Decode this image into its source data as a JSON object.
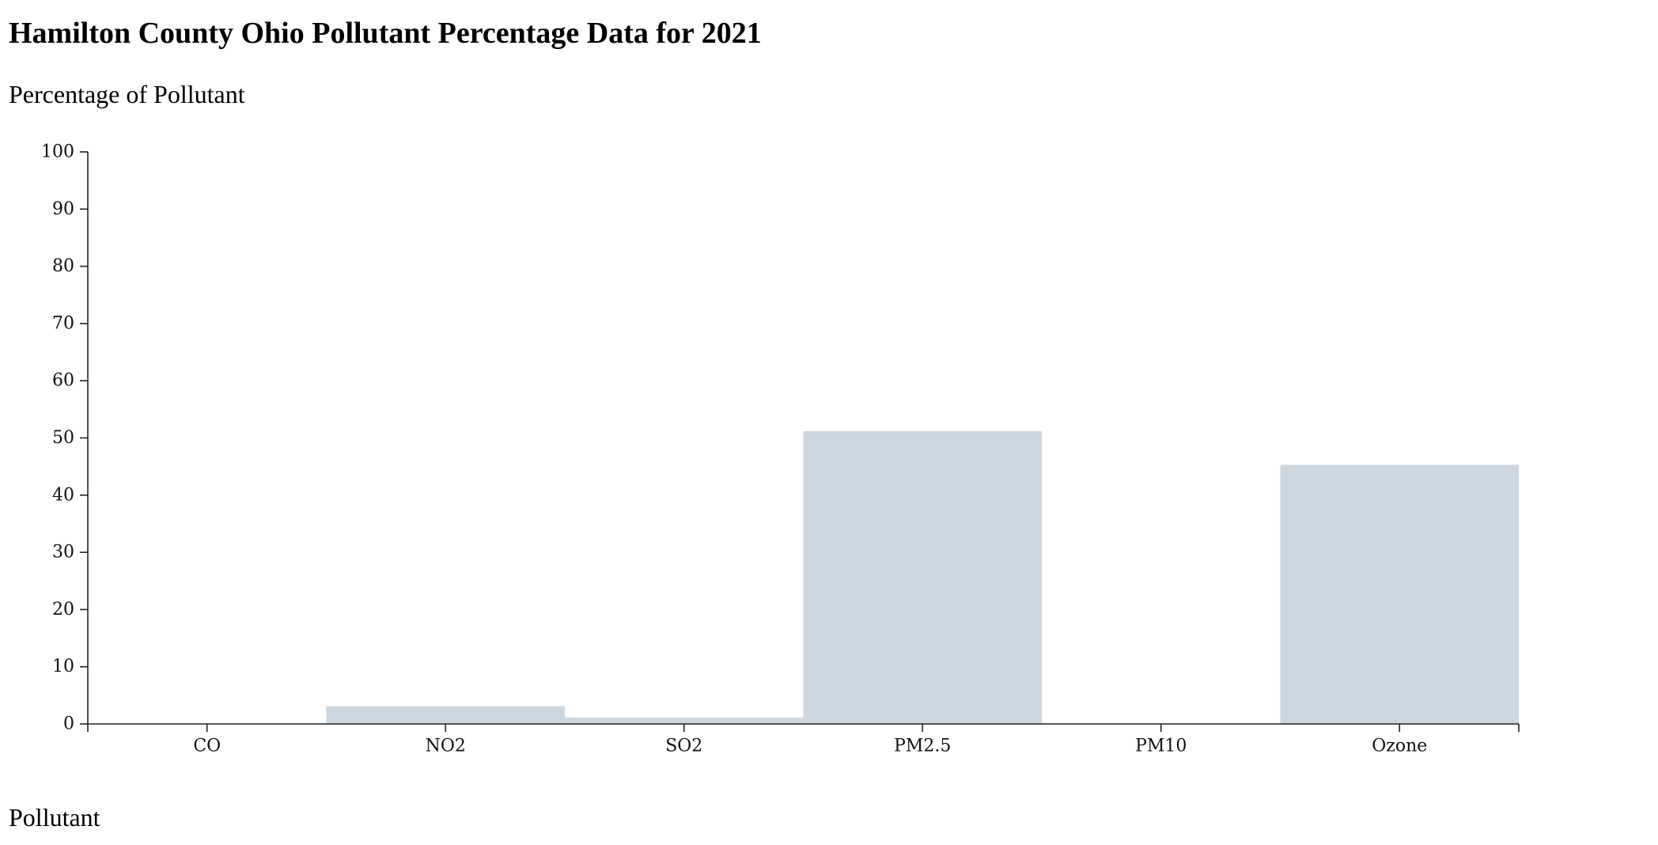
{
  "title": "Hamilton County Ohio Pollutant Percentage Data for 2021",
  "y_axis_title": "Percentage of Pollutant",
  "x_axis_title": "Pollutant",
  "colors": {
    "bar": "#cdd7df",
    "axis": "#222222"
  },
  "chart_data": {
    "type": "bar",
    "title": "Hamilton County Ohio Pollutant Percentage Data for 2021",
    "xlabel": "Pollutant",
    "ylabel": "Percentage of Pollutant",
    "categories": [
      "CO",
      "NO2",
      "SO2",
      "PM2.5",
      "PM10",
      "Ozone"
    ],
    "values": [
      0,
      3.1,
      1.1,
      51.2,
      0,
      45.3
    ],
    "ylim": [
      0,
      100
    ],
    "yticks": [
      0,
      10,
      20,
      30,
      40,
      50,
      60,
      70,
      80,
      90,
      100
    ],
    "grid": false,
    "legend": "none"
  }
}
